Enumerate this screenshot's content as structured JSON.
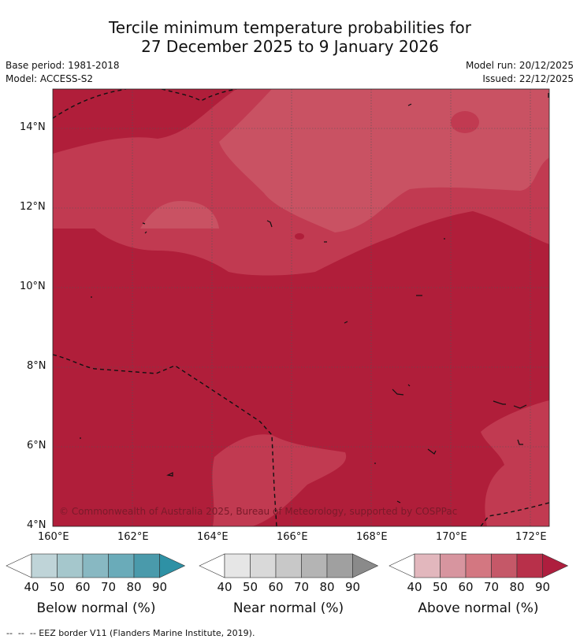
{
  "header": {
    "title_line1": "Tercile minimum temperature probabilities for",
    "title_line2": "27 December 2025 to 9 January 2026",
    "base_period": "Base period: 1981-2018",
    "model": "Model: ACCESS-S2",
    "model_run": "Model run: 20/12/2025",
    "issued": "Issued: 22/12/2025"
  },
  "map": {
    "lat_labels": [
      "14°N",
      "12°N",
      "10°N",
      "8°N",
      "6°N",
      "4°N"
    ],
    "lon_labels": [
      "160°E",
      "162°E",
      "164°E",
      "166°E",
      "168°E",
      "170°E",
      "172°E"
    ],
    "copyright": "© Commonwealth of Australia 2025, Bureau of Meteorology, supported by COSPPac",
    "colors": {
      "above_90": "#b01e3a",
      "above_80": "#c13a51",
      "above_70": "#c95263"
    },
    "dominant_category": "Above normal (80-90%)"
  },
  "legends": [
    {
      "name": "below",
      "title": "Below normal (%)",
      "ticks": [
        "40",
        "50",
        "60",
        "70",
        "80",
        "90"
      ],
      "colors": [
        "#ffffff",
        "#bfd4d8",
        "#a5c7cc",
        "#88b8c2",
        "#6aabb9",
        "#4a9aab",
        "#2e91a5"
      ]
    },
    {
      "name": "near",
      "title": "Near normal (%)",
      "ticks": [
        "40",
        "50",
        "60",
        "70",
        "80",
        "90"
      ],
      "colors": [
        "#ffffff",
        "#e6e6e6",
        "#d9d9d9",
        "#c8c8c8",
        "#b4b4b4",
        "#a0a0a0",
        "#8a8a8a"
      ]
    },
    {
      "name": "above",
      "title": "Above normal (%)",
      "ticks": [
        "40",
        "50",
        "60",
        "70",
        "80",
        "90"
      ],
      "colors": [
        "#ffffff",
        "#e2b7bd",
        "#d7959f",
        "#d37781",
        "#c55868",
        "#b8304a",
        "#ae1e3e"
      ]
    }
  ],
  "footer": {
    "eez_note": "--  --  -- EEZ border V11 (Flanders Marine Institute, 2019)."
  }
}
